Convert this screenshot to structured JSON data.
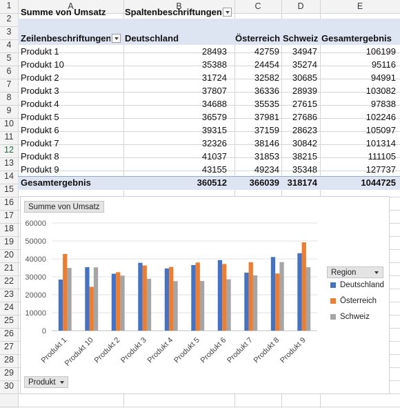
{
  "columns": [
    "A",
    "B",
    "C",
    "D",
    "E"
  ],
  "rows": [
    "1",
    "2",
    "3",
    "4",
    "5",
    "6",
    "7",
    "8",
    "9",
    "10",
    "11",
    "12",
    "13",
    "14",
    "15",
    "16",
    "17",
    "18",
    "19",
    "20",
    "21",
    "22",
    "23",
    "24",
    "25",
    "26",
    "27",
    "28",
    "29",
    "30"
  ],
  "pivot": {
    "value_field": "Summe von Umsatz",
    "col_labels": "Spaltenbeschriftungen",
    "row_labels": "Zeilenbeschriftungen",
    "col_headers": [
      "Deutschland",
      "Österreich",
      "Schweiz",
      "Gesamtergebnis"
    ],
    "products": [
      {
        "name": "Produkt 1",
        "values": [
          "28493",
          "42759",
          "34947",
          "106199"
        ]
      },
      {
        "name": "Produkt 10",
        "values": [
          "35388",
          "24454",
          "35274",
          "95116"
        ]
      },
      {
        "name": "Produkt 2",
        "values": [
          "31724",
          "32582",
          "30685",
          "94991"
        ]
      },
      {
        "name": "Produkt 3",
        "values": [
          "37807",
          "36336",
          "28939",
          "103082"
        ]
      },
      {
        "name": "Produkt 4",
        "values": [
          "34688",
          "35535",
          "27615",
          "97838"
        ]
      },
      {
        "name": "Produkt 5",
        "values": [
          "36579",
          "37981",
          "27686",
          "102246"
        ]
      },
      {
        "name": "Produkt 6",
        "values": [
          "39315",
          "37159",
          "28623",
          "105097"
        ]
      },
      {
        "name": "Produkt 7",
        "values": [
          "32326",
          "38146",
          "30842",
          "101314"
        ]
      },
      {
        "name": "Produkt 8",
        "values": [
          "41037",
          "31853",
          "38215",
          "111105"
        ]
      },
      {
        "name": "Produkt 9",
        "values": [
          "43155",
          "49234",
          "35348",
          "127737"
        ]
      }
    ],
    "total_label": "Gesamtergebnis",
    "totals": [
      "360512",
      "366039",
      "318174",
      "1044725"
    ]
  },
  "chart_buttons": {
    "value": "Summe von Umsatz",
    "legend_field": "Region",
    "axis_field": "Produkt"
  },
  "chart_data": {
    "type": "bar",
    "categories": [
      "Produkt 1",
      "Produkt 10",
      "Produkt 2",
      "Produkt 3",
      "Produkt 4",
      "Produkt 5",
      "Produkt 6",
      "Produkt 7",
      "Produkt 8",
      "Produkt 9"
    ],
    "series": [
      {
        "name": "Deutschland",
        "color": "#4472c4",
        "values": [
          28493,
          35388,
          31724,
          37807,
          34688,
          36579,
          39315,
          32326,
          41037,
          43155
        ]
      },
      {
        "name": "Österreich",
        "color": "#ed7d31",
        "values": [
          42759,
          24454,
          32582,
          36336,
          35535,
          37981,
          37159,
          38146,
          31853,
          49234
        ]
      },
      {
        "name": "Schweiz",
        "color": "#a5a5a5",
        "values": [
          34947,
          35274,
          30685,
          28939,
          27615,
          27686,
          28623,
          30842,
          38215,
          35348
        ]
      }
    ],
    "yticks": [
      "0",
      "10000",
      "20000",
      "30000",
      "40000",
      "50000",
      "60000"
    ],
    "ylim": [
      0,
      60000
    ],
    "grid": true,
    "legend_position": "right"
  }
}
